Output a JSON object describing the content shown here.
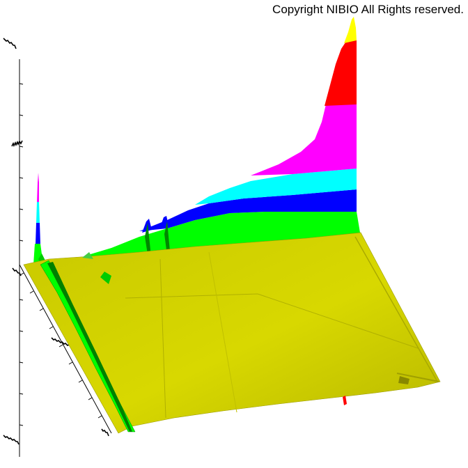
{
  "copyright": "Copyright NIBIO All Rights reserved.",
  "chart_data": {
    "type": "surface-3d",
    "title": "",
    "xlabel": "",
    "ylabel": "",
    "zlabel": "",
    "color_bands": [
      "#d4d400",
      "#00ff00",
      "#0000ff",
      "#00ffff",
      "#ff00ff",
      "#ff0000",
      "#ffff00"
    ],
    "base_surface_color": "#cccc00",
    "grid": false,
    "legend": "none"
  }
}
